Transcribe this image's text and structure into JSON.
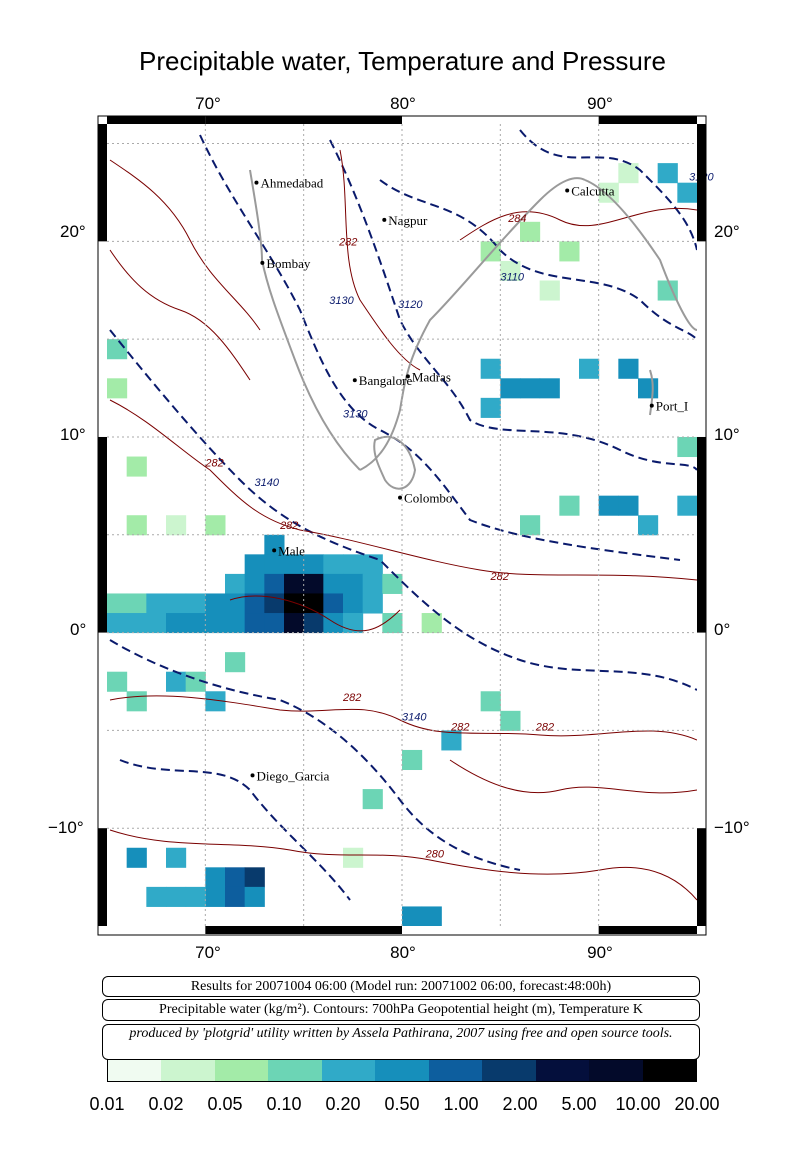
{
  "title": "Precipitable water, Temperature and Pressure",
  "axes": {
    "lon_ticks": [
      "70°",
      "80°",
      "90°"
    ],
    "lat_ticks": [
      "20°",
      "10°",
      "0°",
      "−10°"
    ]
  },
  "cities": [
    {
      "name": "Ahmedabad",
      "lon": 72.6,
      "lat": 23.0
    },
    {
      "name": "Calcutta",
      "lon": 88.4,
      "lat": 22.6
    },
    {
      "name": "Nagpur",
      "lon": 79.1,
      "lat": 21.1
    },
    {
      "name": "Bombay",
      "lon": 72.9,
      "lat": 18.9
    },
    {
      "name": "Bangalore",
      "lon": 77.6,
      "lat": 12.9
    },
    {
      "name": "Madras",
      "lon": 80.3,
      "lat": 13.1
    },
    {
      "name": "Port_I",
      "lon": 92.7,
      "lat": 11.6
    },
    {
      "name": "Colombo",
      "lon": 79.9,
      "lat": 6.9
    },
    {
      "name": "Male",
      "lon": 73.5,
      "lat": 4.2
    },
    {
      "name": "Diego_Garcia",
      "lon": 72.4,
      "lat": -7.3
    }
  ],
  "contour_labels": [
    {
      "text": "3120",
      "lon": 94.6,
      "lat": 23.1
    },
    {
      "text": "284",
      "lon": 85.4,
      "lat": 21.0
    },
    {
      "text": "282",
      "lon": 76.8,
      "lat": 19.8
    },
    {
      "text": "3110",
      "lon": 85.0,
      "lat": 18.0
    },
    {
      "text": "3120",
      "lon": 79.8,
      "lat": 16.6
    },
    {
      "text": "3130",
      "lon": 76.3,
      "lat": 16.8
    },
    {
      "text": "3130",
      "lon": 77.0,
      "lat": 11.0
    },
    {
      "text": "282",
      "lon": 70.0,
      "lat": 8.5
    },
    {
      "text": "3140",
      "lon": 72.5,
      "lat": 7.5
    },
    {
      "text": "282",
      "lon": 73.8,
      "lat": 5.3
    },
    {
      "text": "282",
      "lon": 84.5,
      "lat": 2.7
    },
    {
      "text": "282",
      "lon": 77.0,
      "lat": -3.5
    },
    {
      "text": "3140",
      "lon": 80.0,
      "lat": -4.5
    },
    {
      "text": "282",
      "lon": 82.5,
      "lat": -5.0
    },
    {
      "text": "282",
      "lon": 86.8,
      "lat": -5.0
    },
    {
      "text": "280",
      "lon": 81.2,
      "lat": -11.5
    }
  ],
  "info": {
    "line1": "Results for 20071004 06:00 (Model run: 20071002 06:00, forecast:48:00h)",
    "line2": "Precipitable water (kg/m²).  Contours: 700hPa Geopotential height (m), Temperature K",
    "line3": "produced by 'plotgrid' utility written by Assela Pathirana, 2007 using free and open source tools."
  },
  "legend": {
    "labels": [
      "0.01",
      "0.02",
      "0.05",
      "0.10",
      "0.20",
      "0.50",
      "1.00",
      "2.00",
      "5.00",
      "10.00",
      "20.00"
    ],
    "colors": [
      "#f0fbf1",
      "#ccf5cf",
      "#a3eba8",
      "#6cd5b5",
      "#30aac8",
      "#168fbb",
      "#0d5e9e",
      "#083a6c",
      "#040f3c",
      "#030a2a",
      "#000000"
    ]
  },
  "pw_cells": [
    {
      "lon": 90.5,
      "lat": 22.5,
      "level": 1
    },
    {
      "lon": 91.5,
      "lat": 23.5,
      "level": 1
    },
    {
      "lon": 93.5,
      "lat": 23.5,
      "level": 4
    },
    {
      "lon": 94.5,
      "lat": 22.5,
      "level": 4
    },
    {
      "lon": 84.5,
      "lat": 19.5,
      "level": 2
    },
    {
      "lon": 86.5,
      "lat": 20.5,
      "level": 2
    },
    {
      "lon": 88.5,
      "lat": 19.5,
      "level": 2
    },
    {
      "lon": 85.5,
      "lat": 18.5,
      "level": 1
    },
    {
      "lon": 87.5,
      "lat": 17.5,
      "level": 1
    },
    {
      "lon": 93.5,
      "lat": 17.5,
      "level": 3
    },
    {
      "lon": 84.5,
      "lat": 13.5,
      "level": 4
    },
    {
      "lon": 85.5,
      "lat": 12.5,
      "level": 5
    },
    {
      "lon": 86.5,
      "lat": 12.5,
      "level": 5
    },
    {
      "lon": 87.5,
      "lat": 12.5,
      "level": 5
    },
    {
      "lon": 91.5,
      "lat": 13.5,
      "level": 5
    },
    {
      "lon": 92.5,
      "lat": 12.5,
      "level": 5
    },
    {
      "lon": 89.5,
      "lat": 13.5,
      "level": 4
    },
    {
      "lon": 84.5,
      "lat": 11.5,
      "level": 4
    },
    {
      "lon": 65.5,
      "lat": 14.5,
      "level": 3
    },
    {
      "lon": 65.5,
      "lat": 12.5,
      "level": 2
    },
    {
      "lon": 66.5,
      "lat": 8.5,
      "level": 2
    },
    {
      "lon": 88.5,
      "lat": 6.5,
      "level": 3
    },
    {
      "lon": 90.5,
      "lat": 6.5,
      "level": 5
    },
    {
      "lon": 91.5,
      "lat": 6.5,
      "level": 5
    },
    {
      "lon": 92.5,
      "lat": 5.5,
      "level": 4
    },
    {
      "lon": 86.5,
      "lat": 5.5,
      "level": 3
    },
    {
      "lon": 94.5,
      "lat": 6.5,
      "level": 4
    },
    {
      "lon": 66.5,
      "lat": 5.5,
      "level": 2
    },
    {
      "lon": 68.5,
      "lat": 5.5,
      "level": 1
    },
    {
      "lon": 70.5,
      "lat": 5.5,
      "level": 2
    },
    {
      "lon": 73.5,
      "lat": 4.5,
      "level": 5
    },
    {
      "lon": 72.5,
      "lat": 3.5,
      "level": 5
    },
    {
      "lon": 73.5,
      "lat": 3.5,
      "level": 5
    },
    {
      "lon": 74.5,
      "lat": 3.5,
      "level": 5
    },
    {
      "lon": 75.5,
      "lat": 3.5,
      "level": 5
    },
    {
      "lon": 76.5,
      "lat": 3.5,
      "level": 4
    },
    {
      "lon": 77.5,
      "lat": 3.5,
      "level": 4
    },
    {
      "lon": 78.5,
      "lat": 3.5,
      "level": 4
    },
    {
      "lon": 71.5,
      "lat": 2.5,
      "level": 4
    },
    {
      "lon": 72.5,
      "lat": 2.5,
      "level": 5
    },
    {
      "lon": 73.5,
      "lat": 2.5,
      "level": 6
    },
    {
      "lon": 74.5,
      "lat": 2.5,
      "level": 9
    },
    {
      "lon": 75.5,
      "lat": 2.5,
      "level": 9
    },
    {
      "lon": 76.5,
      "lat": 2.5,
      "level": 5
    },
    {
      "lon": 77.5,
      "lat": 2.5,
      "level": 5
    },
    {
      "lon": 78.5,
      "lat": 2.5,
      "level": 4
    },
    {
      "lon": 79.5,
      "lat": 2.5,
      "level": 3
    },
    {
      "lon": 65.5,
      "lat": 1.5,
      "level": 3
    },
    {
      "lon": 66.5,
      "lat": 1.5,
      "level": 3
    },
    {
      "lon": 67.5,
      "lat": 1.5,
      "level": 4
    },
    {
      "lon": 68.5,
      "lat": 1.5,
      "level": 4
    },
    {
      "lon": 69.5,
      "lat": 1.5,
      "level": 4
    },
    {
      "lon": 70.5,
      "lat": 1.5,
      "level": 5
    },
    {
      "lon": 71.5,
      "lat": 1.5,
      "level": 5
    },
    {
      "lon": 72.5,
      "lat": 1.5,
      "level": 6
    },
    {
      "lon": 73.5,
      "lat": 1.5,
      "level": 7
    },
    {
      "lon": 74.5,
      "lat": 1.5,
      "level": 10
    },
    {
      "lon": 75.5,
      "lat": 1.5,
      "level": 10
    },
    {
      "lon": 76.5,
      "lat": 1.5,
      "level": 6
    },
    {
      "lon": 77.5,
      "lat": 1.5,
      "level": 5
    },
    {
      "lon": 78.5,
      "lat": 1.5,
      "level": 4
    },
    {
      "lon": 65.5,
      "lat": 0.5,
      "level": 4
    },
    {
      "lon": 66.5,
      "lat": 0.5,
      "level": 4
    },
    {
      "lon": 67.5,
      "lat": 0.5,
      "level": 4
    },
    {
      "lon": 68.5,
      "lat": 0.5,
      "level": 5
    },
    {
      "lon": 69.5,
      "lat": 0.5,
      "level": 5
    },
    {
      "lon": 70.5,
      "lat": 0.5,
      "level": 5
    },
    {
      "lon": 71.5,
      "lat": 0.5,
      "level": 5
    },
    {
      "lon": 72.5,
      "lat": 0.5,
      "level": 6
    },
    {
      "lon": 73.5,
      "lat": 0.5,
      "level": 6
    },
    {
      "lon": 74.5,
      "lat": 0.5,
      "level": 9
    },
    {
      "lon": 75.5,
      "lat": 0.5,
      "level": 7
    },
    {
      "lon": 76.5,
      "lat": 0.5,
      "level": 5
    },
    {
      "lon": 77.5,
      "lat": 0.5,
      "level": 4
    },
    {
      "lon": 79.5,
      "lat": 0.5,
      "level": 3
    },
    {
      "lon": 81.5,
      "lat": 0.5,
      "level": 2
    },
    {
      "lon": 65.5,
      "lat": -2.5,
      "level": 3
    },
    {
      "lon": 68.5,
      "lat": -2.5,
      "level": 4
    },
    {
      "lon": 69.5,
      "lat": -2.5,
      "level": 3
    },
    {
      "lon": 71.5,
      "lat": -1.5,
      "level": 3
    },
    {
      "lon": 70.5,
      "lat": -3.5,
      "level": 4
    },
    {
      "lon": 66.5,
      "lat": -3.5,
      "level": 3
    },
    {
      "lon": 84.5,
      "lat": -3.5,
      "level": 3
    },
    {
      "lon": 85.5,
      "lat": -4.5,
      "level": 3
    },
    {
      "lon": 66.5,
      "lat": -11.5,
      "level": 5
    },
    {
      "lon": 68.5,
      "lat": -11.5,
      "level": 4
    },
    {
      "lon": 70.5,
      "lat": -12.5,
      "level": 5
    },
    {
      "lon": 71.5,
      "lat": -12.5,
      "level": 6
    },
    {
      "lon": 72.5,
      "lat": -12.5,
      "level": 7
    },
    {
      "lon": 70.5,
      "lat": -13.5,
      "level": 5
    },
    {
      "lon": 71.5,
      "lat": -13.5,
      "level": 6
    },
    {
      "lon": 72.5,
      "lat": -13.5,
      "level": 5
    },
    {
      "lon": 69.5,
      "lat": -13.5,
      "level": 4
    },
    {
      "lon": 68.5,
      "lat": -13.5,
      "level": 4
    },
    {
      "lon": 67.5,
      "lat": -13.5,
      "level": 4
    },
    {
      "lon": 82.5,
      "lat": -5.5,
      "level": 4
    },
    {
      "lon": 80.5,
      "lat": -14.5,
      "level": 5
    },
    {
      "lon": 81.5,
      "lat": -14.5,
      "level": 5
    },
    {
      "lon": 78.5,
      "lat": -8.5,
      "level": 3
    },
    {
      "lon": 80.5,
      "lat": -6.5,
      "level": 3
    },
    {
      "lon": 77.5,
      "lat": -11.5,
      "level": 1
    },
    {
      "lon": 94.5,
      "lat": 9.5,
      "level": 3
    }
  ]
}
